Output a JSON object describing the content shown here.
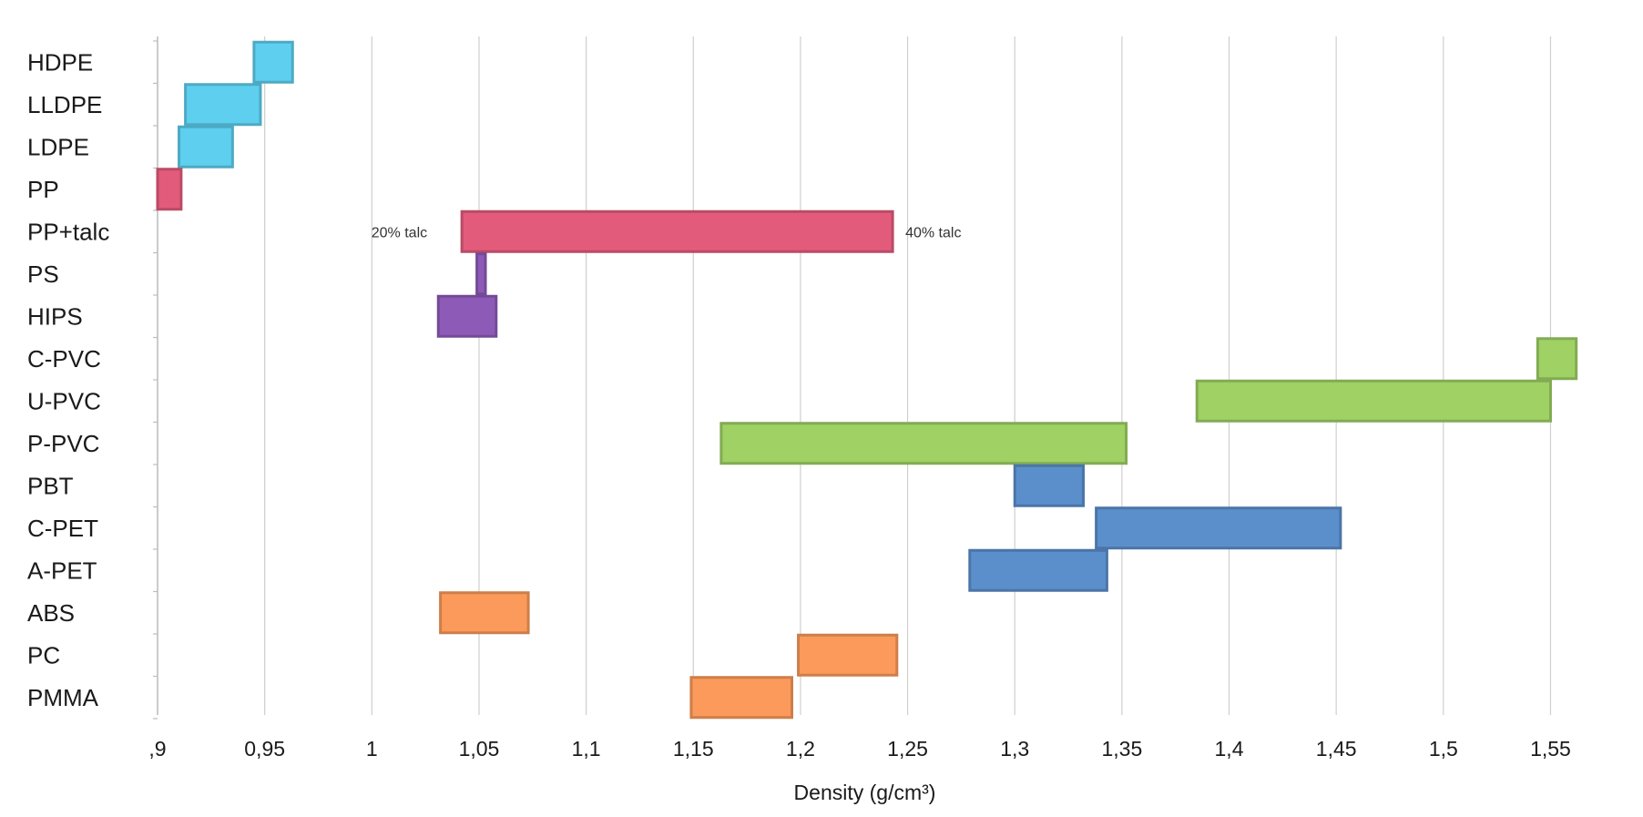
{
  "chart_data": {
    "type": "bar",
    "orientation": "horizontal-range",
    "title": "",
    "xlabel": "Density (g/cm³)",
    "ylabel": "",
    "xlim": [
      0.9,
      1.56
    ],
    "xticks": [
      0.9,
      0.95,
      1.0,
      1.05,
      1.1,
      1.15,
      1.2,
      1.25,
      1.3,
      1.35,
      1.4,
      1.45,
      1.5,
      1.55
    ],
    "xtick_labels": [
      ",9",
      "0,95",
      "1",
      "1,05",
      "1,1",
      "1,15",
      "1,2",
      "1,25",
      "1,3",
      "1,35",
      "1,4",
      "1,45",
      "1,5",
      "1,55"
    ],
    "grid": true,
    "categories": [
      "HDPE",
      "LLDPE",
      "LDPE",
      "PP",
      "PP+talc",
      "PS",
      "HIPS",
      "C-PVC",
      "U-PVC",
      "P-PVC",
      "PBT",
      "C-PET",
      "A-PET",
      "ABS",
      "PC",
      "PMMA"
    ],
    "series": [
      {
        "name": "HDPE",
        "min": 0.945,
        "max": 0.963,
        "color": "#5ecfef"
      },
      {
        "name": "LLDPE",
        "min": 0.913,
        "max": 0.948,
        "color": "#5ecfef"
      },
      {
        "name": "LDPE",
        "min": 0.91,
        "max": 0.935,
        "color": "#5ecfef"
      },
      {
        "name": "PP",
        "min": 0.9,
        "max": 0.911,
        "color": "#e35b7b"
      },
      {
        "name": "PP+talc",
        "min": 1.042,
        "max": 1.243,
        "color": "#e35b7b"
      },
      {
        "name": "PS",
        "min": 1.049,
        "max": 1.053,
        "color": "#8e5ab8"
      },
      {
        "name": "HIPS",
        "min": 1.031,
        "max": 1.058,
        "color": "#8e5ab8"
      },
      {
        "name": "C-PVC",
        "min": 1.544,
        "max": 1.562,
        "color": "#9fd165"
      },
      {
        "name": "U-PVC",
        "min": 1.385,
        "max": 1.55,
        "color": "#9fd165"
      },
      {
        "name": "P-PVC",
        "min": 1.163,
        "max": 1.352,
        "color": "#9fd165"
      },
      {
        "name": "PBT",
        "min": 1.3,
        "max": 1.332,
        "color": "#5b8fcc"
      },
      {
        "name": "C-PET",
        "min": 1.338,
        "max": 1.452,
        "color": "#5b8fcc"
      },
      {
        "name": "A-PET",
        "min": 1.279,
        "max": 1.343,
        "color": "#5b8fcc"
      },
      {
        "name": "ABS",
        "min": 1.032,
        "max": 1.073,
        "color": "#fb9a5a"
      },
      {
        "name": "PC",
        "min": 1.199,
        "max": 1.245,
        "color": "#fb9a5a"
      },
      {
        "name": "PMMA",
        "min": 1.149,
        "max": 1.196,
        "color": "#fb9a5a"
      }
    ],
    "annotations": [
      {
        "text": "20% talc",
        "category": "PP+talc",
        "anchor": "left-of-bar"
      },
      {
        "text": "40% talc",
        "category": "PP+talc",
        "anchor": "right-of-bar"
      }
    ]
  }
}
